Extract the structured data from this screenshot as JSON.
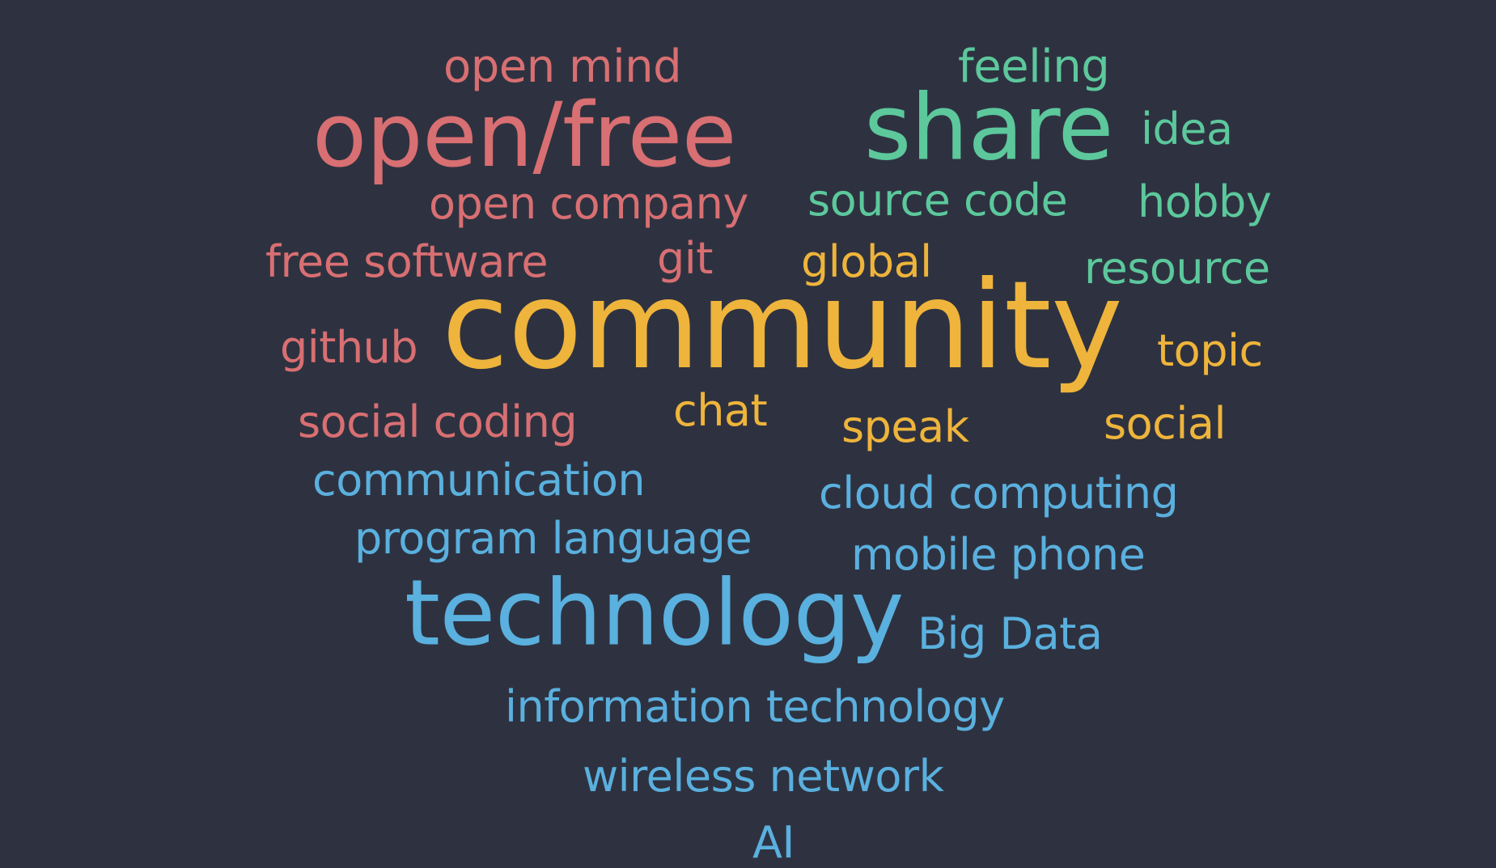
{
  "words": {
    "open_mind": "open mind",
    "feeling": "feeling",
    "open_free": "open/free",
    "share": "share",
    "idea": "idea",
    "open_company": "open company",
    "source_code": "source code",
    "hobby": "hobby",
    "free_software": "free software",
    "git": "git",
    "global": "global",
    "resource": "resource",
    "community": "community",
    "github": "github",
    "topic": "topic",
    "social_coding": "social coding",
    "chat": "chat",
    "speak": "speak",
    "social": "social",
    "communication": "communication",
    "cloud_computing": "cloud computing",
    "program_language": "program language",
    "mobile_phone": "mobile phone",
    "technology": "technology",
    "big_data": "Big Data",
    "information_technology": "information technology",
    "wireless_network": "wireless network",
    "ai": "AI"
  },
  "colors": {
    "background": "#2e3240",
    "red": "#d86f72",
    "green": "#5cc89c",
    "yellow": "#eeb43b",
    "blue": "#5ab0de"
  }
}
